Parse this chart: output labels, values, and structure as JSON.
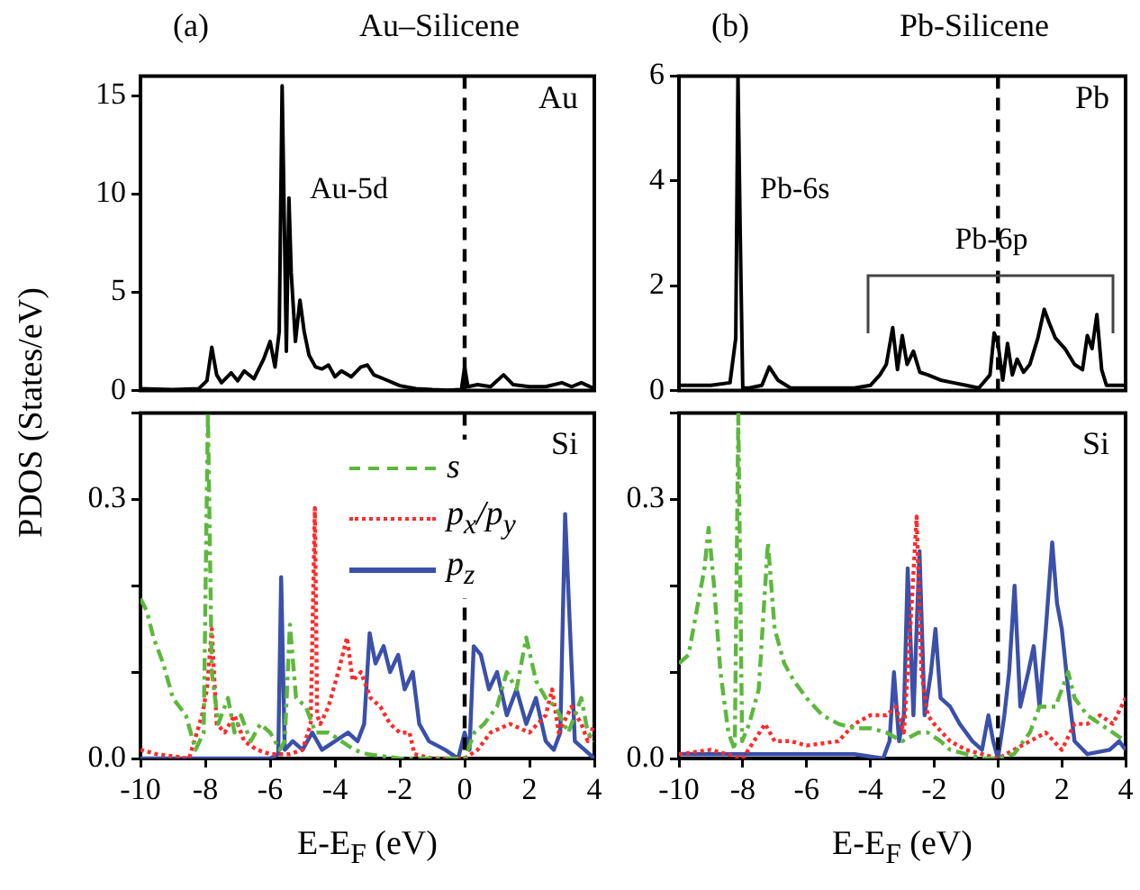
{
  "chart_data": [
    {
      "type": "line",
      "title": "Au–Silicene",
      "ylabel": "PDOS (States/eV)",
      "annotations": [
        "(a)",
        "Au",
        "Au-5d"
      ],
      "xlim": [
        -10,
        4
      ],
      "xticks": [
        -10,
        -8,
        -6,
        -4,
        -2,
        0,
        2,
        4
      ],
      "ylim": [
        0,
        16
      ],
      "yticks": [
        0,
        5,
        10,
        15
      ],
      "tick_labels": "y",
      "grid": false,
      "legend": false,
      "marker": "none",
      "ref_lines": [
        {
          "axis": "x",
          "value": 0,
          "color": "#000000",
          "line_style": "dashed"
        }
      ],
      "series": [
        {
          "color": "#000000",
          "line_style": "solid",
          "x": [
            -10,
            -9,
            -8.2,
            -7.95,
            -7.8,
            -7.65,
            -7.5,
            -7.2,
            -7,
            -6.8,
            -6.5,
            -6.2,
            -6,
            -5.85,
            -5.72,
            -5.63,
            -5.5,
            -5.42,
            -5.35,
            -5.22,
            -5.08,
            -4.95,
            -4.8,
            -4.6,
            -4.4,
            -4.2,
            -4,
            -3.8,
            -3.5,
            -3.2,
            -3,
            -2.8,
            -2.5,
            -2,
            -1.5,
            -1,
            -0.5,
            -0.1,
            0,
            0.1,
            0.4,
            0.8,
            1.2,
            1.5,
            2,
            2.5,
            3,
            3.3,
            3.6,
            4
          ],
          "values": [
            0.1,
            0.05,
            0.1,
            0.5,
            2.2,
            0.8,
            0.4,
            0.9,
            0.5,
            1,
            0.6,
            1.6,
            2.5,
            1.2,
            3,
            15.5,
            2,
            9.8,
            6,
            2.5,
            4.6,
            3,
            1.8,
            1.2,
            1.1,
            1.3,
            0.7,
            1,
            0.7,
            1.2,
            1.3,
            0.8,
            0.6,
            0.25,
            0.1,
            0.05,
            0.02,
            0.05,
            1.2,
            0.2,
            0.3,
            0.2,
            0.8,
            0.3,
            0.2,
            0.2,
            0.4,
            0.2,
            0.4,
            0.1
          ]
        }
      ]
    },
    {
      "type": "line",
      "title": "Pb-Silicene",
      "annotations": [
        "(b)",
        "Pb",
        "Pb-6s",
        "Pb-6p"
      ],
      "xlim": [
        -10,
        4
      ],
      "xticks": [
        -10,
        -8,
        -6,
        -4,
        -2,
        0,
        2,
        4
      ],
      "ylim": [
        0,
        6
      ],
      "yticks": [
        0,
        2,
        4,
        6
      ],
      "tick_labels": "y",
      "grid": false,
      "legend": false,
      "marker": "none",
      "ref_lines": [
        {
          "axis": "x",
          "value": 0,
          "color": "#000000",
          "line_style": "dashed"
        }
      ],
      "series": [
        {
          "color": "#000000",
          "line_style": "solid",
          "x": [
            -10,
            -9,
            -8.4,
            -8.22,
            -8.15,
            -8.08,
            -8,
            -7.8,
            -7.4,
            -7.17,
            -6.9,
            -6.5,
            -5.5,
            -4.5,
            -4,
            -3.7,
            -3.5,
            -3.3,
            -3.15,
            -3,
            -2.85,
            -2.65,
            -2.45,
            -2.2,
            -1.8,
            -1.4,
            -1,
            -0.6,
            -0.25,
            -0.12,
            0,
            0.15,
            0.3,
            0.45,
            0.6,
            0.8,
            1,
            1.25,
            1.45,
            1.6,
            1.8,
            2.1,
            2.4,
            2.65,
            2.8,
            2.95,
            3.1,
            3.25,
            3.4,
            3.6,
            4
          ],
          "values": [
            0.1,
            0.1,
            0.15,
            1,
            6,
            3,
            0.05,
            0.05,
            0.1,
            0.45,
            0.2,
            0.05,
            0.05,
            0.05,
            0.1,
            0.3,
            0.5,
            1.2,
            0.4,
            1.05,
            0.5,
            0.75,
            0.35,
            0.3,
            0.2,
            0.15,
            0.1,
            0.05,
            0.3,
            1.1,
            0.9,
            0.2,
            0.9,
            0.3,
            0.6,
            0.35,
            0.5,
            1.0,
            1.55,
            1.3,
            1.0,
            0.8,
            0.5,
            0.4,
            1.05,
            0.8,
            1.45,
            0.4,
            0.1,
            0.1,
            0.1
          ]
        }
      ]
    },
    {
      "type": "line",
      "xlabel": "E-E$_{F}$ (eV)",
      "annotations": [
        "Si"
      ],
      "xlim": [
        -10,
        4
      ],
      "xticks": [
        -10,
        -8,
        -6,
        -4,
        -2,
        0,
        2,
        4
      ],
      "ylim": [
        0,
        0.4
      ],
      "yticks": [
        {
          "value": 0,
          "label": "0.0"
        },
        {
          "value": 0.1,
          "label": null
        },
        {
          "value": 0.2,
          "label": null
        },
        0.3,
        {
          "value": 0.4,
          "label": null
        }
      ],
      "grid": false,
      "legend": "top",
      "marker": "none",
      "ref_lines": [
        {
          "axis": "x",
          "value": 0,
          "color": "#000000",
          "line_style": "dashed"
        }
      ],
      "series": [
        {
          "name": "s",
          "color": "#5cb83c",
          "line_style": "dashed",
          "x": [
            -10,
            -9.8,
            -9.6,
            -9.3,
            -9,
            -8.6,
            -8.3,
            -8.05,
            -7.92,
            -7.8,
            -7.6,
            -7.3,
            -7.1,
            -6.9,
            -6.6,
            -6.3,
            -6,
            -5.7,
            -5.55,
            -5.39,
            -5.2,
            -4.9,
            -4.6,
            -4.2,
            -3.8,
            -3.4,
            -3,
            -2,
            -1,
            0,
            0.3,
            0.6,
            1,
            1.3,
            1.6,
            1.9,
            2.2,
            2.5,
            2.8,
            3.2,
            3.6,
            3.8,
            4
          ],
          "values": [
            0.185,
            0.17,
            0.14,
            0.11,
            0.07,
            0.05,
            0.01,
            0.03,
            0.4,
            0.1,
            0.04,
            0.07,
            0.03,
            0.05,
            0.02,
            0.04,
            0.03,
            0.01,
            0.02,
            0.155,
            0.07,
            0.06,
            0.03,
            0.03,
            0.02,
            0.01,
            0.005,
            0,
            0,
            0,
            0.03,
            0.04,
            0.06,
            0.1,
            0.08,
            0.14,
            0.09,
            0.07,
            0.06,
            0.03,
            0.07,
            0.03,
            0.02
          ]
        },
        {
          "name": "p$_{x}$/p$_{y}$",
          "color": "#ff2a2a",
          "line_style": "dotted",
          "x": [
            -10,
            -9.5,
            -8.5,
            -8.1,
            -7.95,
            -7.8,
            -7.65,
            -7.4,
            -7.1,
            -6.8,
            -6.4,
            -6,
            -5.4,
            -5,
            -4.75,
            -4.62,
            -4.55,
            -4.45,
            -4.2,
            -3.9,
            -3.63,
            -3.45,
            -3.2,
            -2.9,
            -2.6,
            -2.3,
            -2,
            -1.7,
            -1.55,
            -1,
            -0.5,
            0,
            0.4,
            0.8,
            1.4,
            2,
            2.5,
            2.7,
            2.9,
            3.3,
            3.6,
            3.8,
            4
          ],
          "values": [
            0.01,
            0.005,
            0,
            0.05,
            0.08,
            0.15,
            0.04,
            0.03,
            0.05,
            0.02,
            0.01,
            0.005,
            0.005,
            0.01,
            0.04,
            0.29,
            0.05,
            0.04,
            0.06,
            0.1,
            0.14,
            0.09,
            0.1,
            0.07,
            0.06,
            0.04,
            0.03,
            0.03,
            0.005,
            0,
            0,
            0,
            0.01,
            0.03,
            0.04,
            0.03,
            0.05,
            0.08,
            0.03,
            0.06,
            0.04,
            0.02,
            0.04
          ]
        },
        {
          "name": "p$_{z}$",
          "color": "#3a50aa",
          "line_style": "solid",
          "x": [
            -10,
            -6,
            -5.75,
            -5.66,
            -5.55,
            -5.3,
            -5,
            -4.7,
            -4.4,
            -4,
            -3.6,
            -3.3,
            -3.1,
            -2.93,
            -2.75,
            -2.5,
            -2.3,
            -2.05,
            -1.85,
            -1.6,
            -1.4,
            -1.1,
            -0.6,
            -0.2,
            0,
            0.15,
            0.28,
            0.5,
            0.75,
            1,
            1.3,
            1.6,
            1.9,
            2.2,
            2.5,
            2.75,
            2.95,
            3.1,
            3.25,
            3.4,
            3.7,
            4
          ],
          "values": [
            0,
            0,
            0.005,
            0.21,
            0.01,
            0.02,
            0.01,
            0.03,
            0.01,
            0.02,
            0.03,
            0.02,
            0.04,
            0.145,
            0.11,
            0.13,
            0.1,
            0.12,
            0.08,
            0.1,
            0.04,
            0.02,
            0.01,
            0,
            0.03,
            0.01,
            0.13,
            0.12,
            0.08,
            0.1,
            0.05,
            0.08,
            0.04,
            0.07,
            0.02,
            0.01,
            0.03,
            0.283,
            0.15,
            0.02,
            0.01,
            0
          ]
        }
      ]
    },
    {
      "type": "line",
      "xlabel": "E-E$_{F}$ (eV)",
      "annotations": [
        "Si"
      ],
      "xlim": [
        -10,
        4
      ],
      "xticks": [
        -10,
        -8,
        -6,
        -4,
        -2,
        0,
        2,
        4
      ],
      "ylim": [
        0,
        0.4
      ],
      "yticks": [
        {
          "value": 0,
          "label": "0.0"
        },
        {
          "value": 0.1,
          "label": null
        },
        {
          "value": 0.2,
          "label": null
        },
        0.3,
        {
          "value": 0.4,
          "label": null
        }
      ],
      "grid": false,
      "legend": false,
      "marker": "none",
      "ref_lines": [
        {
          "axis": "x",
          "value": 0,
          "color": "#000000",
          "line_style": "dashed"
        }
      ],
      "series": [
        {
          "color": "#5cb83c",
          "line_style": "dashed",
          "x": [
            -10,
            -9.7,
            -9.45,
            -9.2,
            -9.07,
            -8.9,
            -8.7,
            -8.45,
            -8.25,
            -8.14,
            -8.02,
            -7.8,
            -7.5,
            -7.21,
            -7.0,
            -6.7,
            -6.4,
            -6,
            -5.5,
            -5,
            -4.5,
            -4,
            -3.5,
            -3,
            -2.5,
            -2.2,
            -1.8,
            -1.5,
            -1,
            -0.5,
            0,
            0.5,
            1,
            1.3,
            1.8,
            2.2,
            2.4,
            2.8,
            3.2,
            3.6,
            4
          ],
          "values": [
            0.11,
            0.12,
            0.17,
            0.22,
            0.267,
            0.2,
            0.1,
            0.03,
            0.01,
            0.4,
            0.02,
            0.04,
            0.08,
            0.25,
            0.15,
            0.11,
            0.09,
            0.07,
            0.05,
            0.04,
            0.035,
            0.035,
            0.03,
            0.02,
            0.03,
            0.03,
            0.02,
            0.01,
            0.005,
            0,
            0,
            0.005,
            0.03,
            0.06,
            0.06,
            0.1,
            0.07,
            0.05,
            0.04,
            0.03,
            0.02
          ]
        },
        {
          "color": "#ff2a2a",
          "line_style": "dotted",
          "x": [
            -10,
            -9,
            -8,
            -7.3,
            -7,
            -6.5,
            -6,
            -5,
            -4.5,
            -4,
            -3.5,
            -3.2,
            -2.95,
            -2.75,
            -2.55,
            -2.4,
            -2.2,
            -2,
            -1.5,
            -1,
            -0.5,
            0,
            0.5,
            1,
            1.5,
            2,
            2.4,
            2.8,
            3.2,
            3.6,
            4
          ],
          "values": [
            0.005,
            0.01,
            0,
            0.04,
            0.02,
            0.02,
            0.015,
            0.02,
            0.04,
            0.05,
            0.05,
            0.06,
            0.03,
            0.15,
            0.28,
            0.1,
            0.05,
            0.04,
            0.02,
            0.01,
            0.005,
            0,
            0.01,
            0.02,
            0.03,
            0.01,
            0.04,
            0.04,
            0.05,
            0.04,
            0.07
          ]
        },
        {
          "color": "#3a50aa",
          "line_style": "solid",
          "x": [
            -10,
            -6,
            -4.5,
            -3.6,
            -3.4,
            -3.26,
            -3.1,
            -2.95,
            -2.83,
            -2.65,
            -2.46,
            -2.3,
            -2.1,
            -1.96,
            -1.8,
            -1.5,
            -1.2,
            -0.8,
            -0.5,
            -0.3,
            -0.15,
            0,
            0.2,
            0.35,
            0.52,
            0.7,
            0.95,
            1.12,
            1.3,
            1.5,
            1.7,
            1.85,
            2.0,
            2.2,
            2.4,
            2.8,
            3.5,
            3.8,
            4
          ],
          "values": [
            0.005,
            0.005,
            0.005,
            0,
            0.02,
            0.1,
            0.02,
            0.05,
            0.22,
            0.05,
            0.24,
            0.05,
            0.1,
            0.15,
            0.07,
            0.06,
            0.04,
            0.02,
            0.01,
            0.05,
            0.02,
            0,
            0.05,
            0.1,
            0.2,
            0.06,
            0.1,
            0.13,
            0.06,
            0.15,
            0.25,
            0.18,
            0.15,
            0.08,
            0.02,
            0.005,
            0.01,
            0.02,
            0.01
          ]
        }
      ]
    }
  ]
}
